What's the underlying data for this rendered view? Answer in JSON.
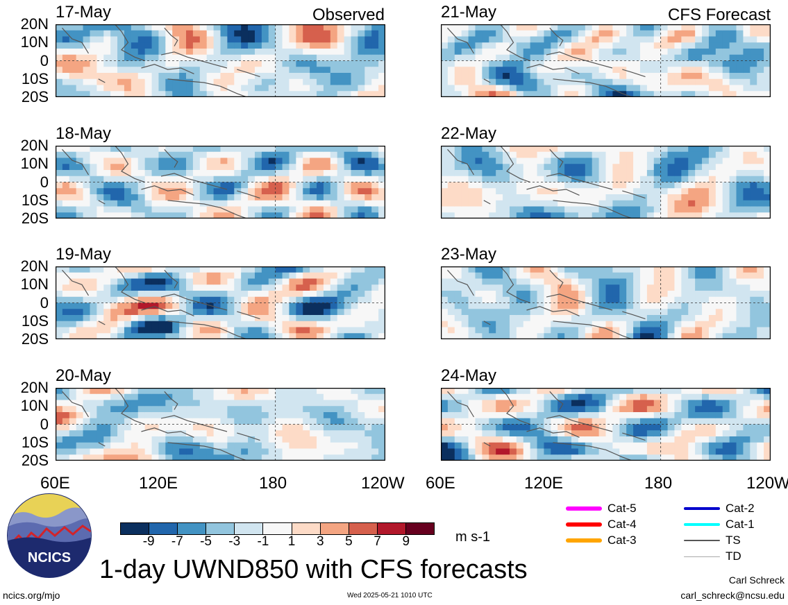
{
  "panels_left": [
    {
      "date": "17-May",
      "tag": "Observed"
    },
    {
      "date": "18-May",
      "tag": ""
    },
    {
      "date": "19-May",
      "tag": ""
    },
    {
      "date": "20-May",
      "tag": ""
    }
  ],
  "panels_right": [
    {
      "date": "21-May",
      "tag": "CFS Forecast"
    },
    {
      "date": "22-May",
      "tag": ""
    },
    {
      "date": "23-May",
      "tag": ""
    },
    {
      "date": "24-May",
      "tag": ""
    }
  ],
  "lat_labels": [
    "20N",
    "10N",
    "0",
    "10S",
    "20S"
  ],
  "lon_labels_left": [
    "60E",
    "120E",
    "180",
    "120W"
  ],
  "lon_labels_right": [
    "60E",
    "120E",
    "180",
    "120W"
  ],
  "colorbar": {
    "ticks": [
      "-9",
      "-7",
      "-5",
      "-3",
      "-1",
      "1",
      "3",
      "5",
      "7",
      "9"
    ],
    "colors": [
      "#0b2f5e",
      "#2166ac",
      "#4393c3",
      "#92c5de",
      "#d1e5f0",
      "#f7f7f7",
      "#fddbc7",
      "#f4a582",
      "#d6604d",
      "#b2182b",
      "#67001f"
    ],
    "units": "m s-1"
  },
  "title": "1-day UWND850 with CFS forecasts",
  "legend": [
    {
      "label": "Cat-5",
      "color": "#ff00ff",
      "width": 6
    },
    {
      "label": "Cat-4",
      "color": "#ff0000",
      "width": 6
    },
    {
      "label": "Cat-3",
      "color": "#ffa500",
      "width": 6
    },
    {
      "label": "Cat-2",
      "color": "#0000cc",
      "width": 4
    },
    {
      "label": "Cat-1",
      "color": "#00ffff",
      "width": 4
    },
    {
      "label": "TS",
      "color": "#555555",
      "width": 2
    },
    {
      "label": "TD",
      "color": "#aaaaaa",
      "width": 1
    }
  ],
  "logo": {
    "text": "NCICS"
  },
  "footer": {
    "site": "ncics.org/mjo",
    "timestamp": "Wed 2025-05-21 1010 UTC",
    "author": "Carl Schreck",
    "email": "carl_schreck@ncsu.edu"
  }
}
